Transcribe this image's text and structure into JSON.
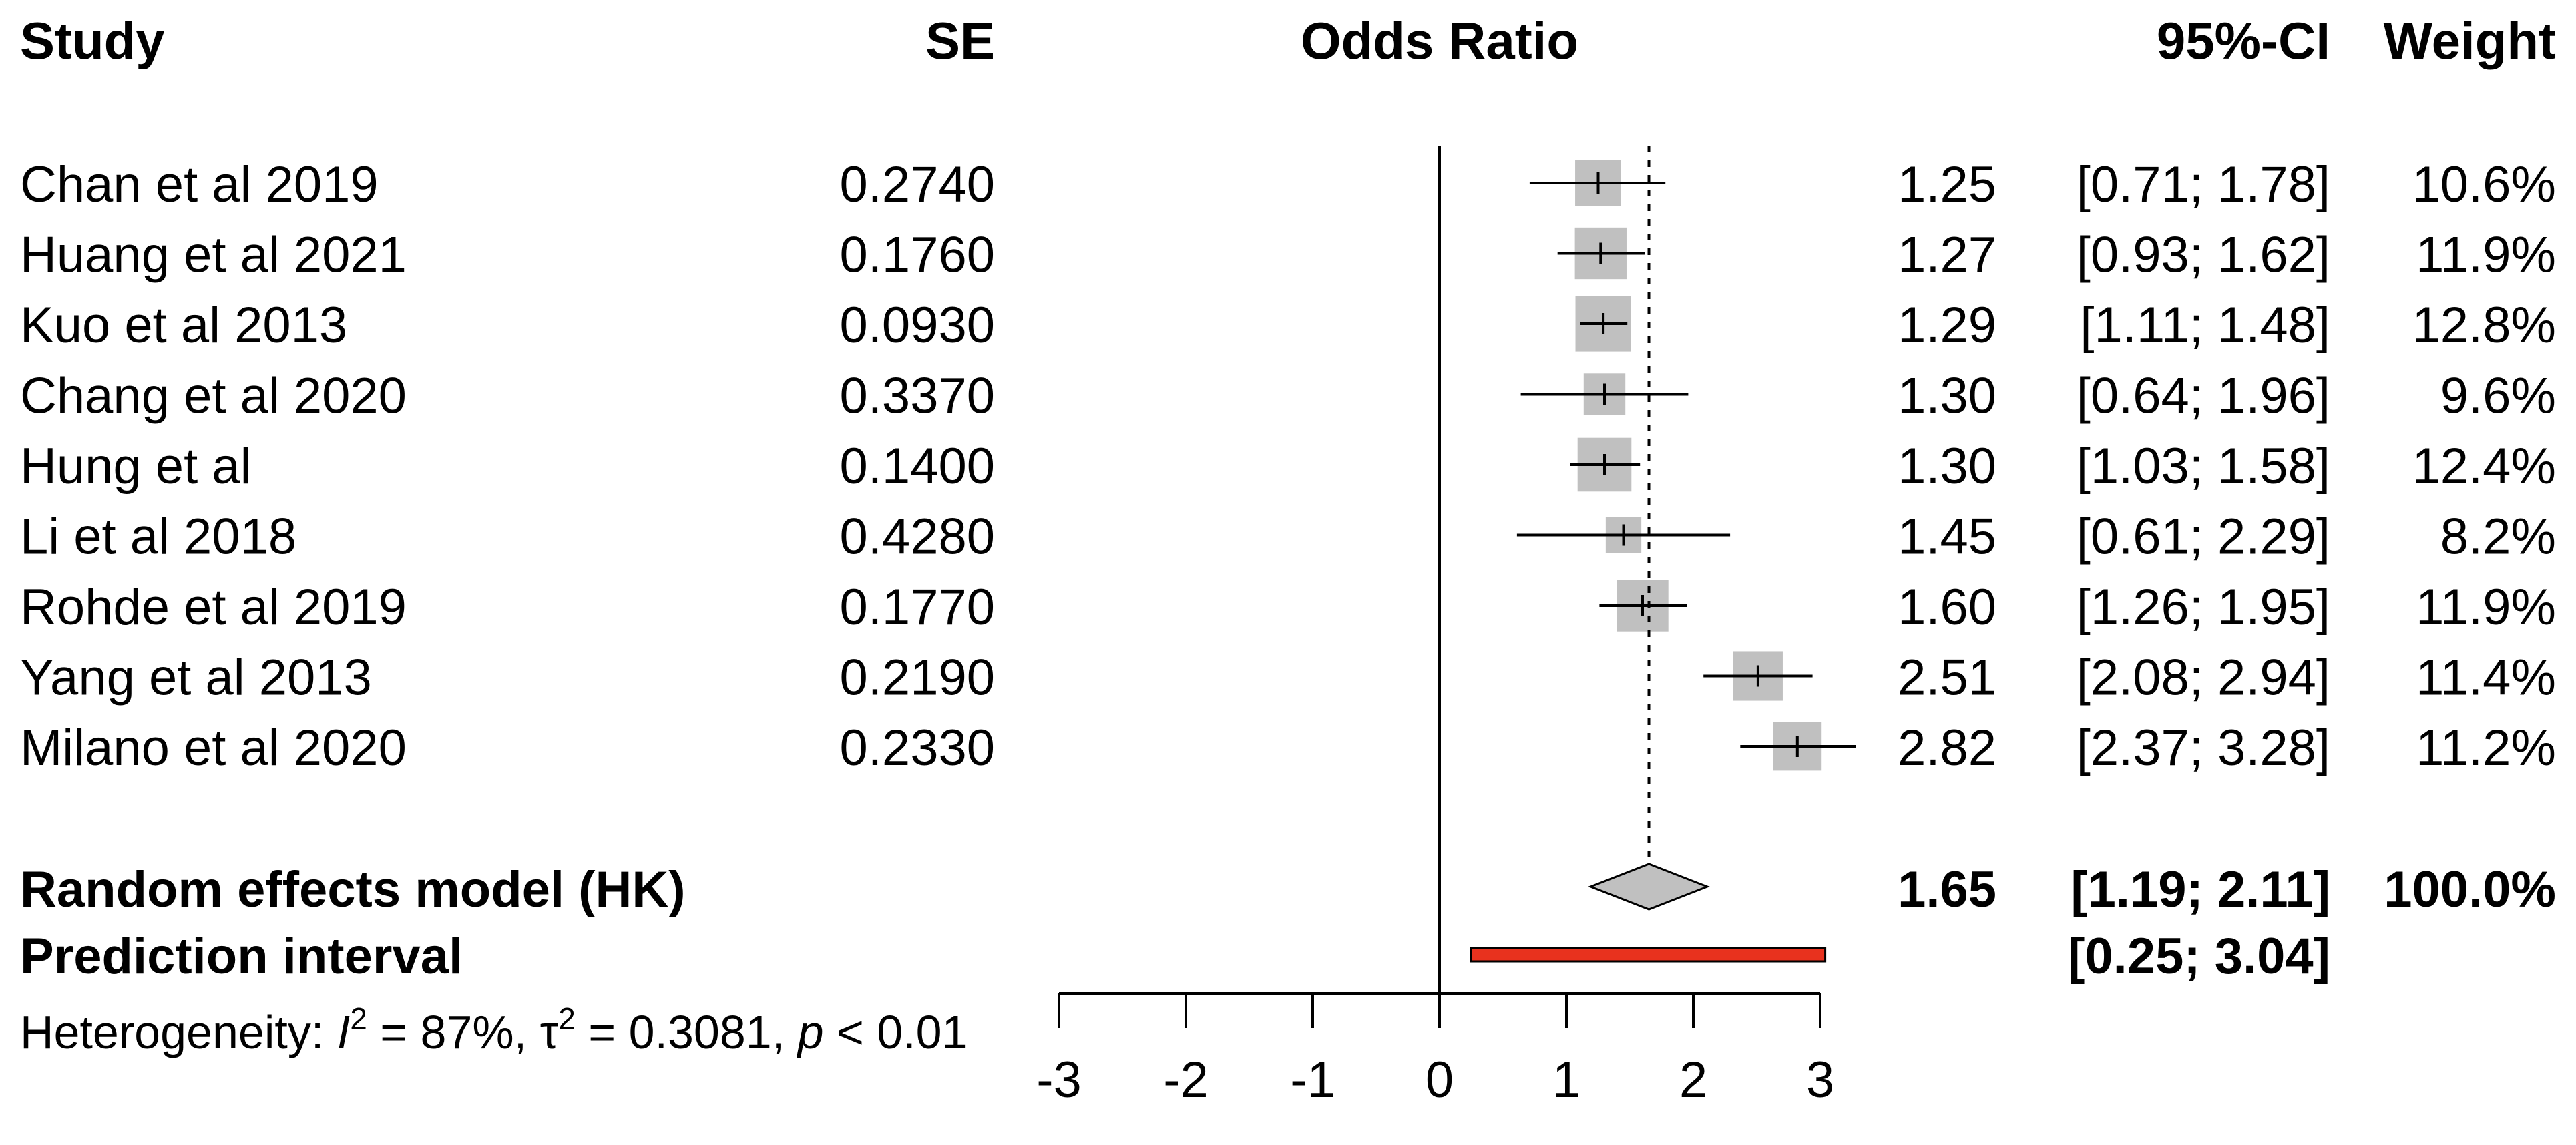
{
  "headers": {
    "study": "Study",
    "se": "SE",
    "effect": "Odds Ratio",
    "ci": "95%-CI",
    "weight": "Weight"
  },
  "studies": [
    {
      "name": "Chan et al 2019",
      "se": "0.2740",
      "est_text": "1.25",
      "ci_text": "[0.71; 1.78]",
      "weight_text": "10.6%"
    },
    {
      "name": "Huang et al 2021",
      "se": "0.1760",
      "est_text": "1.27",
      "ci_text": "[0.93; 1.62]",
      "weight_text": "11.9%"
    },
    {
      "name": "Kuo et al 2013",
      "se": "0.0930",
      "est_text": "1.29",
      "ci_text": "[1.11; 1.48]",
      "weight_text": "12.8%"
    },
    {
      "name": "Chang et al 2020",
      "se": "0.3370",
      "est_text": "1.30",
      "ci_text": "[0.64; 1.96]",
      "weight_text": "9.6%"
    },
    {
      "name": "Hung et al",
      "se": "0.1400",
      "est_text": "1.30",
      "ci_text": "[1.03; 1.58]",
      "weight_text": "12.4%"
    },
    {
      "name": "Li et al 2018",
      "se": "0.4280",
      "est_text": "1.45",
      "ci_text": "[0.61; 2.29]",
      "weight_text": "8.2%"
    },
    {
      "name": "Rohde et al 2019",
      "se": "0.1770",
      "est_text": "1.60",
      "ci_text": "[1.26; 1.95]",
      "weight_text": "11.9%"
    },
    {
      "name": "Yang et al 2013",
      "se": "0.2190",
      "est_text": "2.51",
      "ci_text": "[2.08; 2.94]",
      "weight_text": "11.4%"
    },
    {
      "name": "Milano et al  2020",
      "se": "0.2330",
      "est_text": "2.82",
      "ci_text": "[2.37; 3.28]",
      "weight_text": "11.2%"
    }
  ],
  "pooled": {
    "label": "Random effects model (HK)",
    "est_text": "1.65",
    "ci_text": "[1.19; 2.11]",
    "weight_text": "100.0%"
  },
  "prediction": {
    "label": "Prediction interval",
    "ci_text": "[0.25; 3.04]"
  },
  "heterogeneity": {
    "prefix": "Heterogeneity: ",
    "i2_symbol": "I",
    "i2_value": " = 87%, ",
    "tau_symbol": "τ",
    "tau_value": " = 0.3081, ",
    "p_symbol": "p",
    "p_value": " < 0.01",
    "superscript": "2"
  },
  "colors": {
    "square": "#c0c0c0",
    "diamond": "#c0c0c0",
    "prediction": "#e8321e",
    "line": "#000000"
  },
  "chart_data": {
    "type": "forest",
    "measure": "Odds Ratio",
    "xlim": [
      -3,
      3
    ],
    "xticks": [
      -3,
      -2,
      -1,
      0,
      1,
      2,
      3
    ],
    "reference_line": 0,
    "pooled_line": 1.65,
    "studies": [
      {
        "name": "Chan et al 2019",
        "est": 1.25,
        "lower": 0.71,
        "upper": 1.78,
        "weight": 10.6
      },
      {
        "name": "Huang et al 2021",
        "est": 1.27,
        "lower": 0.93,
        "upper": 1.62,
        "weight": 11.9
      },
      {
        "name": "Kuo et al 2013",
        "est": 1.29,
        "lower": 1.11,
        "upper": 1.48,
        "weight": 12.8
      },
      {
        "name": "Chang et al 2020",
        "est": 1.3,
        "lower": 0.64,
        "upper": 1.96,
        "weight": 9.6
      },
      {
        "name": "Hung et al",
        "est": 1.3,
        "lower": 1.03,
        "upper": 1.58,
        "weight": 12.4
      },
      {
        "name": "Li et al 2018",
        "est": 1.45,
        "lower": 0.61,
        "upper": 2.29,
        "weight": 8.2
      },
      {
        "name": "Rohde et al 2019",
        "est": 1.6,
        "lower": 1.26,
        "upper": 1.95,
        "weight": 11.9
      },
      {
        "name": "Yang et al 2013",
        "est": 2.51,
        "lower": 2.08,
        "upper": 2.94,
        "weight": 11.4
      },
      {
        "name": "Milano et al  2020",
        "est": 2.82,
        "lower": 2.37,
        "upper": 3.28,
        "weight": 11.2
      }
    ],
    "pooled": {
      "est": 1.65,
      "lower": 1.19,
      "upper": 2.11
    },
    "prediction_interval": {
      "lower": 0.25,
      "upper": 3.04
    }
  }
}
